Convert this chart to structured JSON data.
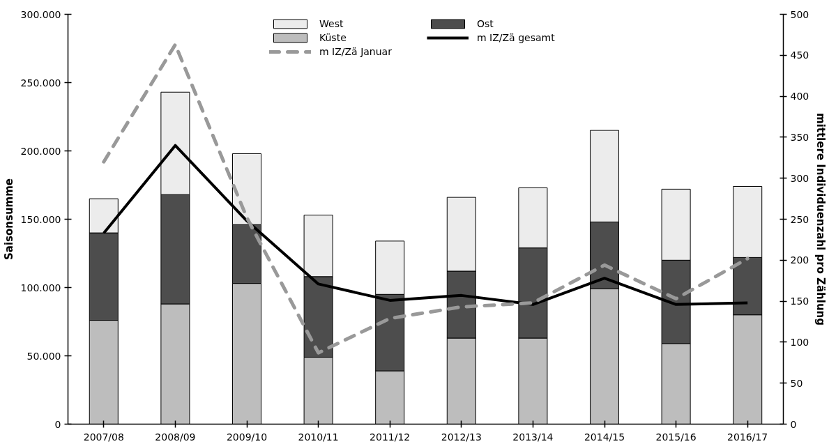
{
  "chart_data": {
    "type": "bar",
    "stacked": true,
    "categories": [
      "2007/08",
      "2008/09",
      "2009/10",
      "2010/11",
      "2011/12",
      "2012/13",
      "2013/14",
      "2014/15",
      "2015/16",
      "2016/17"
    ],
    "ylabel": "Saisonsumme",
    "y2label": "mittlere Individuenzahl pro Zählung",
    "ylim": [
      0,
      300000
    ],
    "yticks": [
      {
        "value": 0,
        "label": "0"
      },
      {
        "value": 50000,
        "label": "50.000"
      },
      {
        "value": 100000,
        "label": "100.000"
      },
      {
        "value": 150000,
        "label": "150.000"
      },
      {
        "value": 200000,
        "label": "200.000"
      },
      {
        "value": 250000,
        "label": "250.000"
      },
      {
        "value": 300000,
        "label": "300.000"
      }
    ],
    "y2lim": [
      0,
      500
    ],
    "y2ticks": [
      0,
      50,
      100,
      150,
      200,
      250,
      300,
      350,
      400,
      450,
      500
    ],
    "legend": "top",
    "grid": false,
    "series": [
      {
        "name": "Küste",
        "color": "#bdbdbd",
        "values": [
          76000,
          88000,
          103000,
          49000,
          39000,
          63000,
          63000,
          99000,
          59000,
          80000
        ]
      },
      {
        "name": "Ost",
        "color": "#4d4d4d",
        "values": [
          64000,
          80000,
          43000,
          59000,
          56000,
          49000,
          66000,
          49000,
          61000,
          42000
        ]
      },
      {
        "name": "West",
        "color": "#ececec",
        "values": [
          25000,
          75000,
          52000,
          45000,
          39000,
          54000,
          44000,
          67000,
          52000,
          52000
        ]
      },
      {
        "name": "m IZ/Zä gesamt",
        "type": "line",
        "axis": "y2",
        "color": "#000000",
        "line_style": "solid",
        "values": [
          233,
          340,
          248,
          171,
          151,
          157,
          146,
          178,
          146,
          148
        ]
      },
      {
        "name": "m IZ/Zä Januar",
        "type": "line",
        "axis": "y2",
        "color": "#999999",
        "line_style": "dashed",
        "values": [
          320,
          463,
          252,
          87,
          129,
          143,
          148,
          194,
          153,
          202
        ]
      }
    ]
  }
}
